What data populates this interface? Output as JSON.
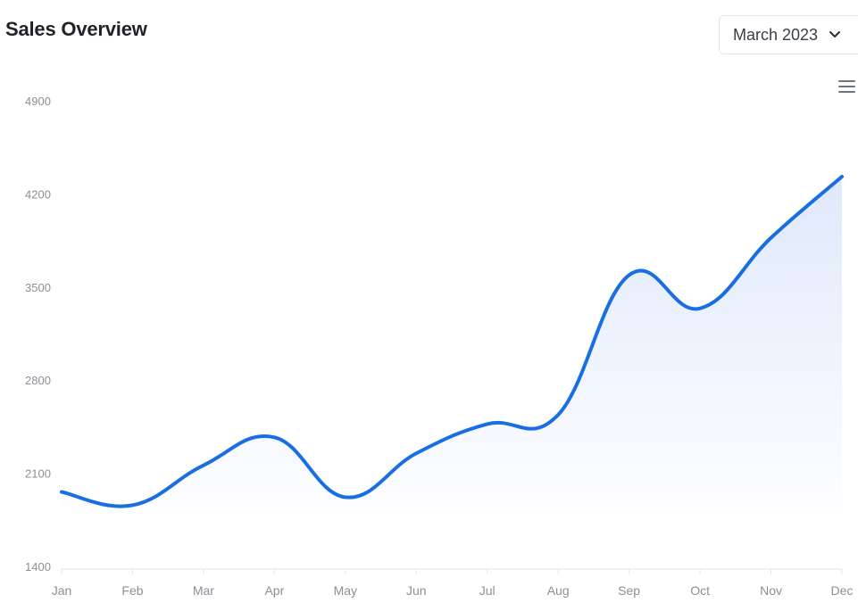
{
  "header": {
    "title": "Sales Overview",
    "period_select": {
      "selected": "March 2023"
    }
  },
  "icons": {
    "period_chevron": "chevron-down-icon",
    "chart_menu": "hamburger-menu-icon"
  },
  "colors": {
    "line": "#1a6fe0",
    "area_fill_top": "#dfe8fb",
    "axis_text": "#8a9097",
    "axis_line": "#e4e6ea"
  },
  "chart_data": {
    "type": "area",
    "title": "",
    "xlabel": "",
    "ylabel": "",
    "categories": [
      "Jan",
      "Feb",
      "Mar",
      "Apr",
      "May",
      "Jun",
      "Jul",
      "Aug",
      "Sep",
      "Oct",
      "Nov",
      "Dec"
    ],
    "series": [
      {
        "values": [
          1960,
          1860,
          2160,
          2370,
          1920,
          2250,
          2470,
          2540,
          3590,
          3340,
          3870,
          4330
        ]
      }
    ],
    "yticks": [
      1400,
      2100,
      2800,
      3500,
      4200,
      4900
    ],
    "ylim": [
      1400,
      4900
    ],
    "grid": false,
    "legend": "none"
  }
}
